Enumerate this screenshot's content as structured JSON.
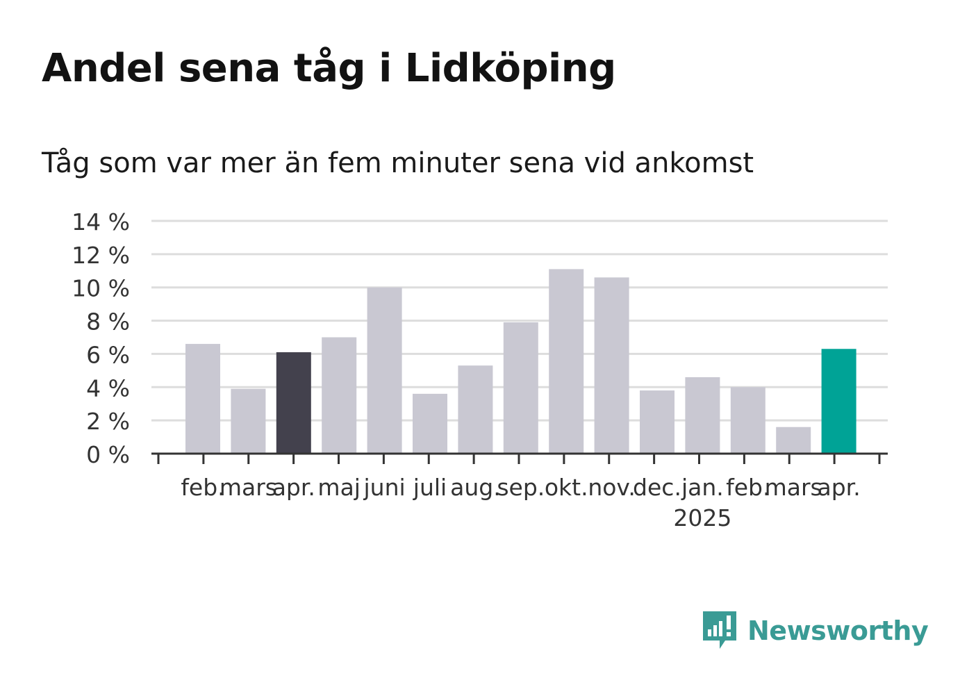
{
  "header": {
    "title": "Andel sena tåg i Lidköping",
    "subtitle": "Tåg som var mer än fem minuter sena vid ankomst"
  },
  "brand": {
    "name": "Newsworthy",
    "icon": "newsworthy-logo-icon",
    "color": "#3a9b95"
  },
  "colors": {
    "default_bar": "#c9c8d2",
    "previous_year_bar": "#43414d",
    "current_bar": "#00a396",
    "grid": "#dddddd",
    "axis": "#333333"
  },
  "chart_data": {
    "type": "bar",
    "categories": [
      "feb.",
      "mars",
      "apr.",
      "maj",
      "juni",
      "juli",
      "aug.",
      "sep.",
      "okt.",
      "nov.",
      "dec.",
      "jan.",
      "feb.",
      "mars",
      "apr."
    ],
    "values": [
      6.6,
      3.9,
      6.1,
      7.0,
      10.0,
      3.6,
      5.3,
      7.9,
      11.1,
      10.6,
      3.8,
      4.6,
      4.0,
      1.6,
      6.3
    ],
    "year_label": {
      "text": "2025",
      "under_index": 11
    },
    "highlight": {
      "previous_year_index": 2,
      "current_index": 14
    },
    "ylim": [
      0,
      14
    ],
    "yticks": [
      0,
      2,
      4,
      6,
      8,
      10,
      12,
      14
    ],
    "ytick_labels": [
      "0 %",
      "2 %",
      "4 %",
      "6 %",
      "8 %",
      "10 %",
      "12 %",
      "14 %"
    ],
    "xlabel": "",
    "ylabel": "",
    "grid": true,
    "legend": "none"
  }
}
